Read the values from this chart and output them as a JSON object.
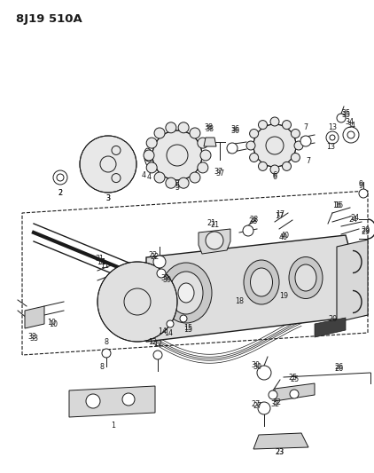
{
  "title": "8J19 510A",
  "bg": "#ffffff",
  "lc": "#1a1a1a",
  "fig_w": 4.22,
  "fig_h": 5.33,
  "dpi": 100,
  "label_fs": 5.8,
  "title_fs": 9.5
}
